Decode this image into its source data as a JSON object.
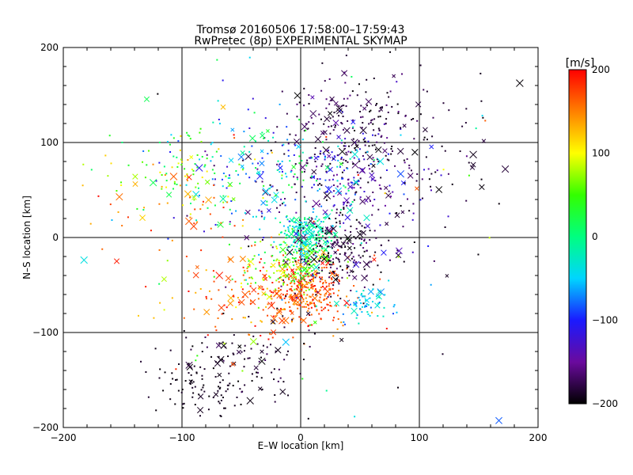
{
  "chart_data": {
    "type": "scatter",
    "title": "Tromsø 20160506 17:58:00–17:59:43",
    "subtitle": "RwPretec (8p) EXPERIMENTAL SKYMAP",
    "xlabel": "E–W location [km]",
    "ylabel": "N–S location [km]",
    "xlim": [
      -200,
      200
    ],
    "ylim": [
      -200,
      200
    ],
    "xticks": [
      "−200",
      "−100",
      "0",
      "100",
      "200"
    ],
    "yticks": [
      "−200",
      "−100",
      "0",
      "100",
      "200"
    ],
    "grid": true,
    "colorbar": {
      "label": "[m/s]",
      "range": [
        -200,
        200
      ],
      "ticks": [
        "−200",
        "−100",
        "0",
        "100",
        "200"
      ],
      "colors": [
        "#000000",
        "#6a0a9e",
        "#1a1aff",
        "#00d5ff",
        "#00ff80",
        "#33ff00",
        "#ffff00",
        "#ff8000",
        "#ff0000"
      ]
    },
    "clusters": [
      {
        "cx": 5,
        "cy": -55,
        "sx": 15,
        "sy": 18,
        "n": 260,
        "vmin": 140,
        "vmax": 200
      },
      {
        "cx": -35,
        "cy": -60,
        "sx": 40,
        "sy": 25,
        "n": 160,
        "vmin": 120,
        "vmax": 200
      },
      {
        "cx": 5,
        "cy": 0,
        "sx": 10,
        "sy": 12,
        "n": 220,
        "vmin": -60,
        "vmax": 20
      },
      {
        "cx": -10,
        "cy": -30,
        "sx": 20,
        "sy": 15,
        "n": 140,
        "vmin": 20,
        "vmax": 110
      },
      {
        "cx": 55,
        "cy": -70,
        "sx": 10,
        "sy": 8,
        "n": 60,
        "vmin": -80,
        "vmax": -20
      },
      {
        "cx": 30,
        "cy": -20,
        "sx": 20,
        "sy": 20,
        "n": 200,
        "vmin": -200,
        "vmax": -160
      },
      {
        "cx": 45,
        "cy": 120,
        "sx": 30,
        "sy": 30,
        "n": 180,
        "vmin": -200,
        "vmax": -160
      },
      {
        "cx": 40,
        "cy": 60,
        "sx": 40,
        "sy": 35,
        "n": 280,
        "vmin": -200,
        "vmax": -100
      },
      {
        "cx": -20,
        "cy": 70,
        "sx": 45,
        "sy": 30,
        "n": 200,
        "vmin": -120,
        "vmax": 40
      },
      {
        "cx": -100,
        "cy": 70,
        "sx": 35,
        "sy": 25,
        "n": 90,
        "vmin": 0,
        "vmax": 120
      },
      {
        "cx": -100,
        "cy": 40,
        "sx": 30,
        "sy": 20,
        "n": 40,
        "vmin": 130,
        "vmax": 200
      },
      {
        "cx": -80,
        "cy": -150,
        "sx": 25,
        "sy": 18,
        "n": 110,
        "vmin": -200,
        "vmax": -185
      },
      {
        "cx": -40,
        "cy": -120,
        "sx": 25,
        "sy": 20,
        "n": 70,
        "vmin": -200,
        "vmax": -170
      },
      {
        "cx": 130,
        "cy": 100,
        "sx": 40,
        "sy": 50,
        "n": 40,
        "vmin": -200,
        "vmax": -180
      },
      {
        "cx": 0,
        "cy": 0,
        "sx": 100,
        "sy": 100,
        "n": 120,
        "vmin": -200,
        "vmax": 200
      }
    ]
  }
}
